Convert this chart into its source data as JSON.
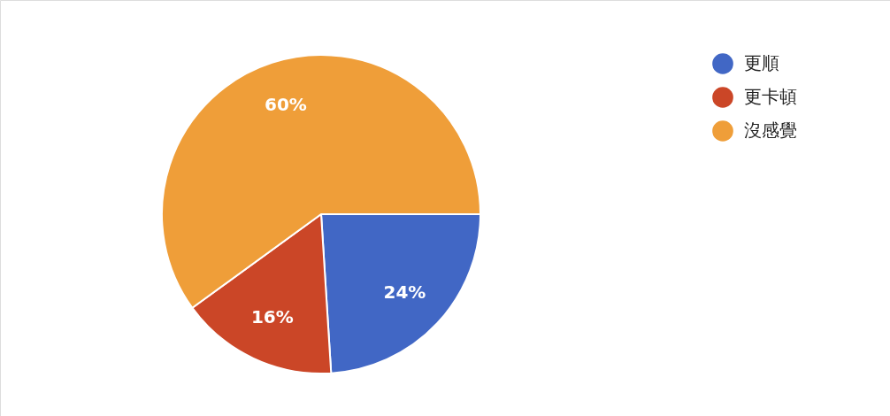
{
  "chart_data": {
    "type": "pie",
    "categories": [
      "更順",
      "更卡頓",
      "沒感覺"
    ],
    "values": [
      24,
      16,
      60
    ],
    "colors": [
      "#4167c5",
      "#cb4627",
      "#ef9e39"
    ],
    "value_labels": [
      "24%",
      "16%",
      "60%"
    ],
    "legend": "top right"
  }
}
